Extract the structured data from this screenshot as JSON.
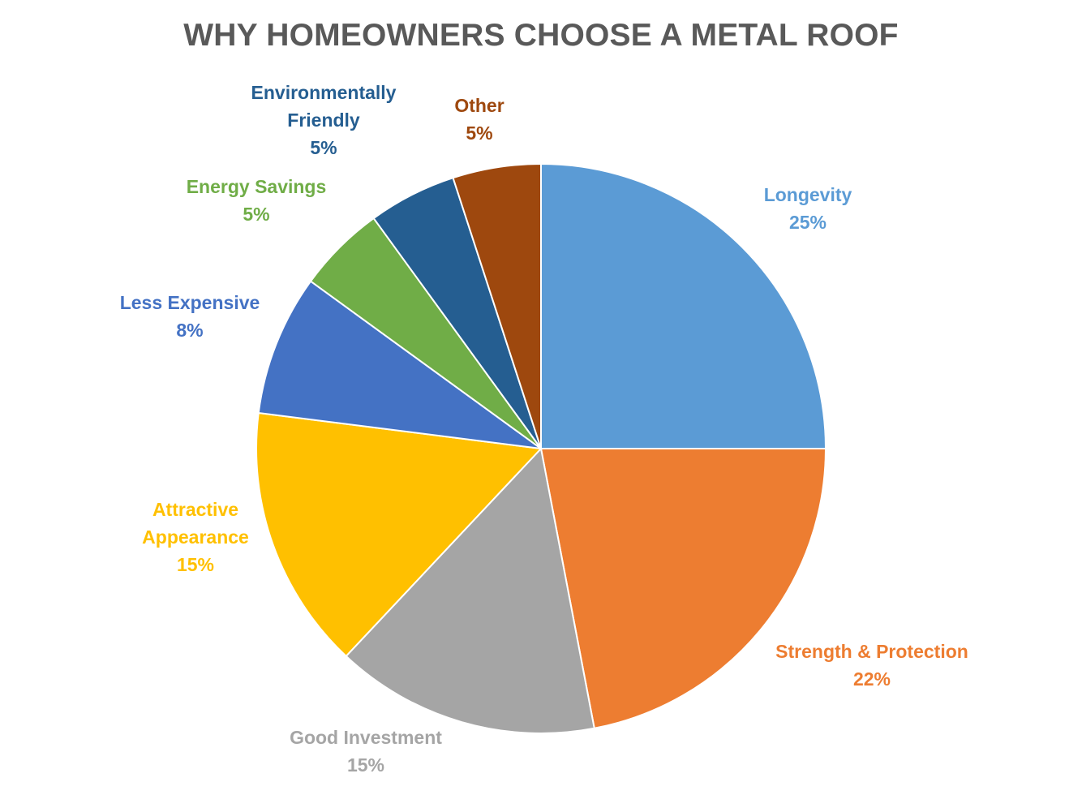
{
  "chart_data": {
    "type": "pie",
    "title": "WHY HOMEOWNERS CHOOSE A METAL ROOF",
    "slices": [
      {
        "label": "Longevity",
        "display_percent": "25%",
        "value": 25,
        "color": "#5B9BD5",
        "label_lines": [
          "Longevity",
          "25%"
        ]
      },
      {
        "label": "Strength & Protection",
        "display_percent": "22%",
        "value": 22,
        "color": "#ED7D31",
        "label_lines": [
          "Strength & Protection",
          "22%"
        ]
      },
      {
        "label": "Good Investment",
        "display_percent": "15%",
        "value": 15,
        "color": "#A5A5A5",
        "label_lines": [
          "Good Investment",
          "15%"
        ]
      },
      {
        "label": "Attractive Appearance",
        "display_percent": "15%",
        "value": 15,
        "color": "#FFC000",
        "label_lines": [
          "Attractive",
          "Appearance",
          "15%"
        ]
      },
      {
        "label": "Less Expensive",
        "display_percent": "8%",
        "value": 8,
        "color": "#4472C4",
        "label_lines": [
          "Less Expensive",
          "8%"
        ]
      },
      {
        "label": "Energy Savings",
        "display_percent": "5%",
        "value": 5,
        "color": "#70AD47",
        "label_lines": [
          "Energy Savings",
          "5%"
        ]
      },
      {
        "label": "Environmentally Friendly",
        "display_percent": "5%",
        "value": 5,
        "color": "#255E91",
        "label_lines": [
          "Environmentally",
          "Friendly",
          "5%"
        ]
      },
      {
        "label": "Other",
        "display_percent": "5%",
        "value": 5,
        "color": "#9E480E",
        "label_lines": [
          "Other",
          "5%"
        ]
      }
    ],
    "legend": "none"
  }
}
